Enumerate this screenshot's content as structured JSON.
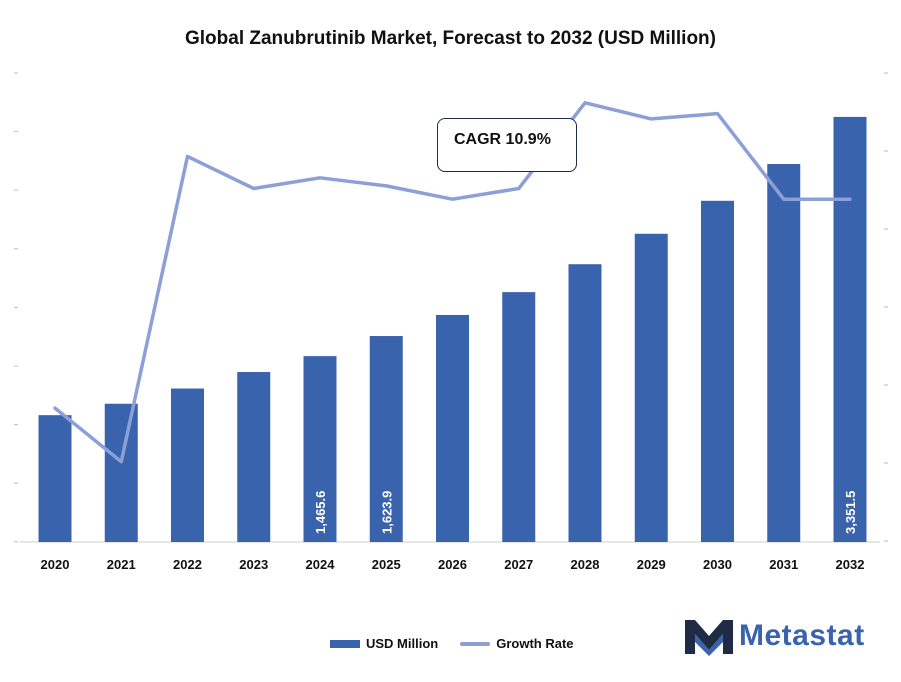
{
  "title": "Global Zanubrutinib Market, Forecast to 2032 (USD Million)",
  "cagr_label": "CAGR 10.9%",
  "brand": {
    "name": "Metastat",
    "color": "#3a63ae"
  },
  "colors": {
    "bar": "#3a63ae",
    "line": "#8c9fd6"
  },
  "chart_data": {
    "type": "bar",
    "title": "Global Zanubrutinib Market, Forecast to 2032 (USD Million)",
    "categories": [
      "2020",
      "2021",
      "2022",
      "2023",
      "2024",
      "2025",
      "2026",
      "2027",
      "2028",
      "2029",
      "2030",
      "2031",
      "2032"
    ],
    "series": [
      {
        "name": "USD Million",
        "type": "bar",
        "values": [
          1000,
          1090,
          1210,
          1340,
          1465.6,
          1623.9,
          1790,
          1970,
          2190,
          2430,
          2690,
          2980,
          3351.5
        ],
        "data_labels": [
          "",
          "",
          "",
          "",
          "1,465.6",
          "1,623.9",
          "",
          "",
          "",
          "",
          "",
          "",
          "3,351.5"
        ]
      },
      {
        "name": "Growth Rate",
        "type": "line",
        "values": [
          8.5,
          7.5,
          13.2,
          12.6,
          12.8,
          12.65,
          12.4,
          12.6,
          14.2,
          13.9,
          14.0,
          12.4,
          12.4
        ]
      }
    ],
    "ylim": [
      0,
      3800
    ],
    "ylim_right": [
      6,
      15
    ],
    "legend": "bottom-center",
    "grid": false
  }
}
